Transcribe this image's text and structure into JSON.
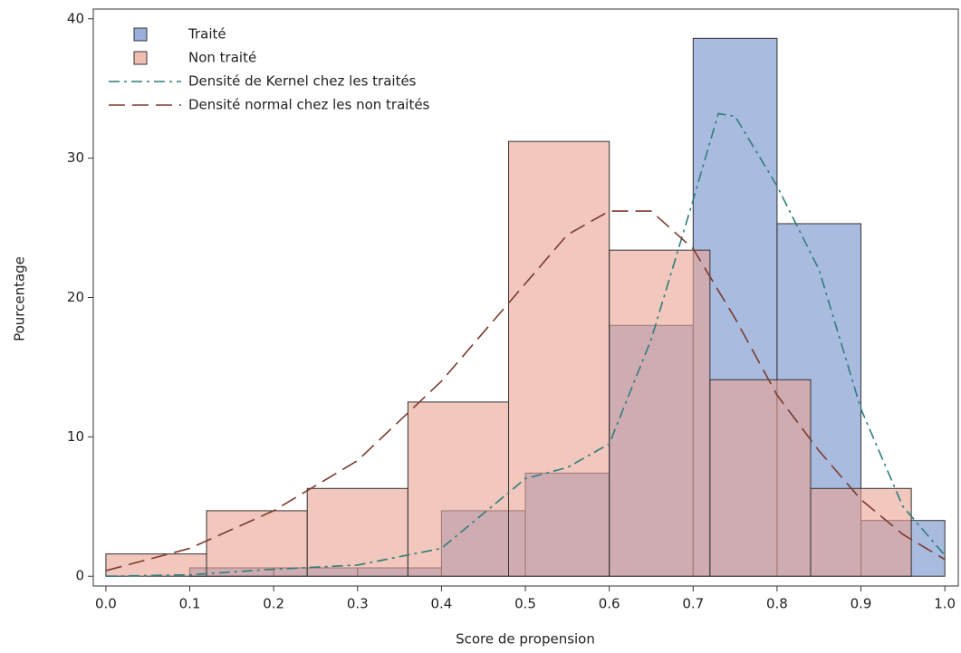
{
  "chart_data": {
    "type": "histogram",
    "xlabel": "Score de propension",
    "ylabel": "Pourcentage",
    "xlim": [
      -0.015,
      1.016
    ],
    "ylim": [
      -0.7,
      40.7
    ],
    "xticks": [
      {
        "value": 0,
        "label": "0.0"
      },
      0.1,
      0.2,
      0.3,
      0.4,
      0.5,
      0.6,
      0.7,
      0.8,
      0.9,
      {
        "value": 1,
        "label": "1.0"
      }
    ],
    "yticks": [
      0,
      10,
      20,
      30,
      40
    ],
    "series": [
      {
        "name": "Traité",
        "color": "#6f8fcc",
        "bins": [
          0.1,
          0.2,
          0.3,
          0.4,
          0.5,
          0.6,
          0.7,
          0.8,
          0.9,
          1.0
        ],
        "values": [
          0.6,
          0.6,
          0.6,
          4.7,
          7.4,
          18.0,
          38.6,
          25.3,
          4.0
        ]
      },
      {
        "name": "Non traité",
        "color": "#e9a193",
        "bins": [
          0,
          0.12,
          0.24,
          0.36,
          0.48,
          0.6,
          0.72,
          0.84,
          0.96
        ],
        "values": [
          1.6,
          4.7,
          6.3,
          12.5,
          31.2,
          23.4,
          14.1,
          6.3
        ]
      }
    ],
    "lines": [
      {
        "name": "Densité de Kernel chez les traités",
        "color": "#2e7d7a",
        "dash": "dashdot",
        "x": [
          0.0,
          0.1,
          0.2,
          0.3,
          0.4,
          0.45,
          0.5,
          0.55,
          0.6,
          0.65,
          0.7,
          0.73,
          0.75,
          0.8,
          0.85,
          0.9,
          0.95,
          1.0
        ],
        "values": [
          0.0,
          0.1,
          0.5,
          0.8,
          2.0,
          4.5,
          7.0,
          7.8,
          9.5,
          17.0,
          27.0,
          33.2,
          33.0,
          28.0,
          22.0,
          12.0,
          5.0,
          1.5
        ]
      },
      {
        "name": "Densité normal chez les non traités",
        "color": "#7a3b2e",
        "dash": "long",
        "x": [
          0.0,
          0.1,
          0.2,
          0.3,
          0.4,
          0.5,
          0.55,
          0.6,
          0.65,
          0.7,
          0.75,
          0.8,
          0.85,
          0.9,
          0.95,
          1.0
        ],
        "values": [
          0.4,
          2.0,
          4.7,
          8.3,
          14.0,
          21.0,
          24.5,
          26.2,
          26.2,
          23.5,
          18.5,
          13.0,
          9.0,
          5.5,
          3.0,
          1.2
        ]
      }
    ]
  }
}
